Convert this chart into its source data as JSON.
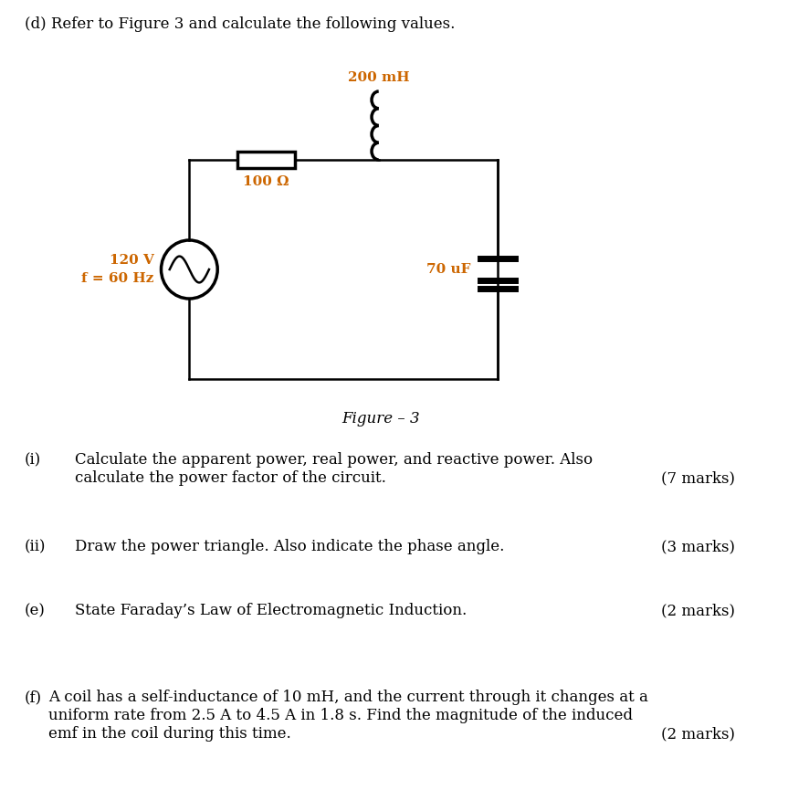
{
  "background_color": "#ffffff",
  "title_text": "(d) Refer to Figure 3 and calculate the following values.",
  "figure_caption": "Figure – 3",
  "source_label_v": "120 V",
  "source_label_f": "f = 60 Hz",
  "resistor_label": "100 Ω",
  "inductor_label": "200 mH",
  "capacitor_label": "70 uF",
  "label_color": "#cc6600",
  "questions": [
    {
      "num": "(i)",
      "text_line1": "Calculate the apparent power, real power, and reactive power. Also",
      "text_line2": "calculate the power factor of the circuit.",
      "marks": "(7 marks)",
      "marks_line": 2
    },
    {
      "num": "(ii)",
      "text_line1": "Draw the power triangle. Also indicate the phase angle.",
      "text_line2": "",
      "marks": "(3 marks)",
      "marks_line": 1
    },
    {
      "num": "(e)",
      "text_line1": "State Faraday’s Law of Electromagnetic Induction.",
      "text_line2": "",
      "marks": "(2 marks)",
      "marks_line": 1
    },
    {
      "num": "(f)",
      "text_line1": "A coil has a self-inductance of 10 mH, and the current through it changes at a",
      "text_line2": "uniform rate from 2.5 A to 4.5 A in 1.8 s. Find the magnitude of the induced",
      "text_line3": "emf in the coil during this time.",
      "marks": "(2 marks)",
      "marks_line": 3
    }
  ]
}
